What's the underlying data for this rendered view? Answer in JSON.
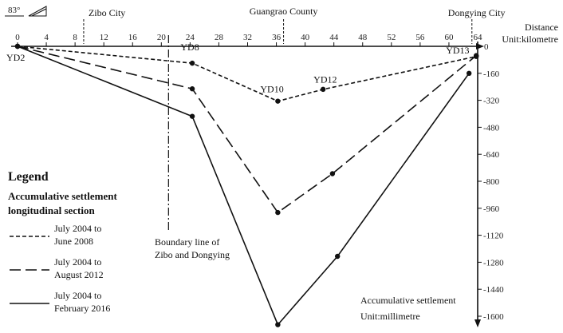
{
  "chart_data": {
    "type": "line",
    "orientation_badge": "83°",
    "x_axis": {
      "ticks": [
        0,
        4,
        8,
        12,
        16,
        20,
        24,
        28,
        32,
        36,
        40,
        44,
        48,
        52,
        56,
        60,
        64
      ],
      "xlim": [
        0,
        64
      ],
      "label_lines": [
        "Distance",
        "Unit:kilometre"
      ]
    },
    "y_axis": {
      "ticks": [
        0,
        -160,
        -320,
        -480,
        -640,
        -800,
        -960,
        -1120,
        -1280,
        -1440,
        -1600
      ],
      "ylim": [
        -1620,
        0
      ],
      "label_lines": [
        "Accumulative settlement",
        "Unit:millimetre"
      ]
    },
    "places": [
      {
        "name": "Zibo City",
        "x": 9.2
      },
      {
        "name": "Guangrao County",
        "x": 37.0
      },
      {
        "name": "Dongying City",
        "x": 63.2
      }
    ],
    "boundary": {
      "x": 21,
      "label_lines": [
        "Boundary line of",
        "Zibo and Dongying"
      ]
    },
    "point_labels": [
      {
        "text": "YD2",
        "x": 0,
        "y": 0,
        "anchor": "below-left"
      },
      {
        "text": "YD8",
        "x": 24,
        "y": -52,
        "anchor": "above"
      },
      {
        "text": "YD10",
        "x": 36.2,
        "y": -320,
        "anchor": "above"
      },
      {
        "text": "YD12",
        "x": 42.5,
        "y": -243,
        "anchor": "above"
      },
      {
        "text": "YD13",
        "x": 63.8,
        "y": -8,
        "anchor": "left"
      }
    ],
    "legend": {
      "title": "Legend",
      "subtitle_lines": [
        "Accumulative settlement",
        "longitudinal section"
      ]
    },
    "series": [
      {
        "name_lines": [
          "July 2004 to",
          "June 2008"
        ],
        "style": "short-dash",
        "points": [
          [
            0,
            0
          ],
          [
            24.3,
            -100
          ],
          [
            36.2,
            -325
          ],
          [
            42.5,
            -255
          ],
          [
            63.8,
            -60
          ]
        ]
      },
      {
        "name_lines": [
          "July 2004 to",
          "August 2012"
        ],
        "style": "long-dash",
        "points": [
          [
            0,
            0
          ],
          [
            24.3,
            -252
          ],
          [
            36.2,
            -985
          ],
          [
            43.8,
            -755
          ],
          [
            63.8,
            -55
          ]
        ]
      },
      {
        "name_lines": [
          "July 2004 to",
          "February 2016"
        ],
        "style": "solid",
        "points": [
          [
            0,
            0
          ],
          [
            24.3,
            -415
          ],
          [
            36.2,
            -1650
          ],
          [
            44.5,
            -1245
          ],
          [
            62.8,
            -160
          ]
        ]
      }
    ]
  }
}
